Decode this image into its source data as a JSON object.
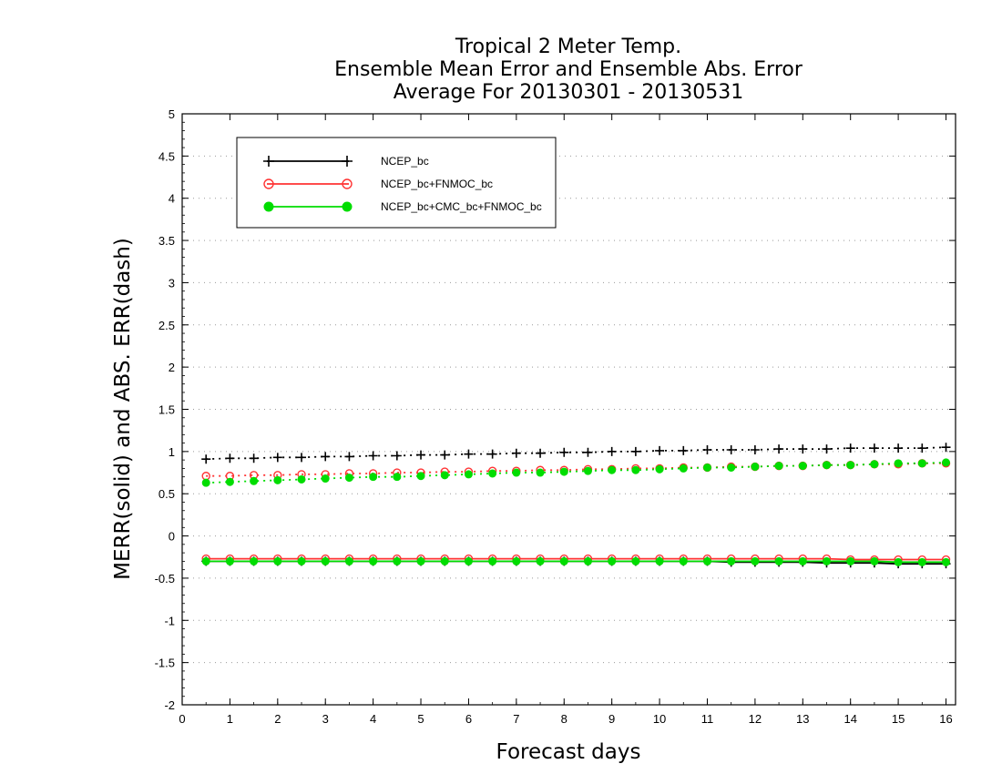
{
  "chart_data": {
    "type": "line",
    "title": [
      "Tropical 2 Meter Temp.",
      "Ensemble Mean Error and Ensemble Abs. Error",
      "Average For 20130301 - 20130531"
    ],
    "xlabel": "Forecast days",
    "ylabel": "MERR(solid) and ABS. ERR(dash)",
    "xlim": [
      0,
      16.2
    ],
    "ylim": [
      -2,
      5
    ],
    "xticks": [
      0,
      1,
      2,
      3,
      4,
      5,
      6,
      7,
      8,
      9,
      10,
      11,
      12,
      13,
      14,
      15,
      16
    ],
    "yticks": [
      -2,
      -1.5,
      -1,
      -0.5,
      0,
      0.5,
      1,
      1.5,
      2,
      2.5,
      3,
      3.5,
      4,
      4.5,
      5
    ],
    "ytick_labels": [
      "-2",
      "-1.5",
      "-1",
      "-0.5",
      "0",
      "0.5",
      "1",
      "1.5",
      "2",
      "2.5",
      "3",
      "3.5",
      "4",
      "4.5",
      "5"
    ],
    "grid": "horizontal dotted",
    "legend_position": "top-left",
    "x": [
      0.5,
      1,
      1.5,
      2,
      2.5,
      3,
      3.5,
      4,
      4.5,
      5,
      5.5,
      6,
      6.5,
      7,
      7.5,
      8,
      8.5,
      9,
      9.5,
      10,
      10.5,
      11,
      11.5,
      12,
      12.5,
      13,
      13.5,
      14,
      14.5,
      15,
      15.5,
      16
    ],
    "series": [
      {
        "name": "NCEP_bc",
        "color": "#000000",
        "marker": "plus",
        "merr": [
          -0.3,
          -0.3,
          -0.3,
          -0.3,
          -0.3,
          -0.3,
          -0.3,
          -0.3,
          -0.3,
          -0.3,
          -0.3,
          -0.3,
          -0.3,
          -0.3,
          -0.3,
          -0.3,
          -0.3,
          -0.3,
          -0.3,
          -0.3,
          -0.3,
          -0.3,
          -0.31,
          -0.31,
          -0.31,
          -0.31,
          -0.32,
          -0.32,
          -0.32,
          -0.33,
          -0.33,
          -0.33
        ],
        "abs_err": [
          0.91,
          0.92,
          0.92,
          0.93,
          0.93,
          0.94,
          0.94,
          0.95,
          0.95,
          0.96,
          0.96,
          0.97,
          0.97,
          0.98,
          0.98,
          0.99,
          0.99,
          1.0,
          1.0,
          1.01,
          1.01,
          1.02,
          1.02,
          1.02,
          1.03,
          1.03,
          1.03,
          1.04,
          1.04,
          1.04,
          1.04,
          1.05
        ]
      },
      {
        "name": "NCEP_bc+FNMOC_bc",
        "color": "#ff3333",
        "marker": "open-circle",
        "merr": [
          -0.27,
          -0.27,
          -0.27,
          -0.27,
          -0.27,
          -0.27,
          -0.27,
          -0.27,
          -0.27,
          -0.27,
          -0.27,
          -0.27,
          -0.27,
          -0.27,
          -0.27,
          -0.27,
          -0.27,
          -0.27,
          -0.27,
          -0.27,
          -0.27,
          -0.27,
          -0.27,
          -0.27,
          -0.27,
          -0.27,
          -0.27,
          -0.28,
          -0.28,
          -0.28,
          -0.28,
          -0.28
        ],
        "abs_err": [
          0.71,
          0.71,
          0.72,
          0.72,
          0.73,
          0.73,
          0.74,
          0.74,
          0.75,
          0.75,
          0.76,
          0.76,
          0.77,
          0.77,
          0.78,
          0.78,
          0.79,
          0.79,
          0.8,
          0.8,
          0.81,
          0.81,
          0.82,
          0.82,
          0.83,
          0.83,
          0.84,
          0.84,
          0.85,
          0.85,
          0.86,
          0.86
        ]
      },
      {
        "name": "NCEP_bc+CMC_bc+FNMOC_bc",
        "color": "#00dd00",
        "marker": "filled-circle",
        "merr": [
          -0.3,
          -0.3,
          -0.3,
          -0.3,
          -0.3,
          -0.3,
          -0.3,
          -0.3,
          -0.3,
          -0.3,
          -0.3,
          -0.3,
          -0.3,
          -0.3,
          -0.3,
          -0.3,
          -0.3,
          -0.3,
          -0.3,
          -0.3,
          -0.3,
          -0.3,
          -0.3,
          -0.3,
          -0.3,
          -0.3,
          -0.3,
          -0.3,
          -0.3,
          -0.31,
          -0.31,
          -0.31
        ],
        "abs_err": [
          0.63,
          0.64,
          0.65,
          0.66,
          0.67,
          0.68,
          0.69,
          0.7,
          0.7,
          0.71,
          0.72,
          0.73,
          0.74,
          0.75,
          0.75,
          0.76,
          0.77,
          0.78,
          0.78,
          0.79,
          0.8,
          0.81,
          0.81,
          0.82,
          0.83,
          0.83,
          0.84,
          0.84,
          0.85,
          0.86,
          0.86,
          0.87
        ]
      }
    ]
  }
}
